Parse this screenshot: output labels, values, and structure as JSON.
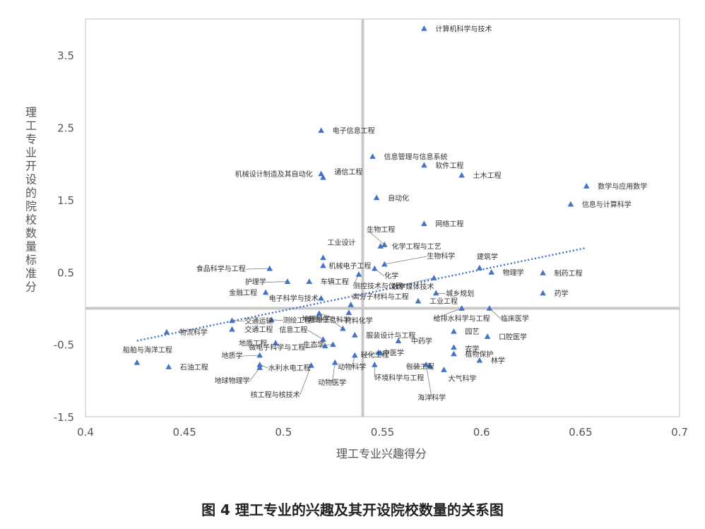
{
  "caption": "图 4 理工专业的兴趣及其开设院校数量的关系图",
  "chart_data": {
    "type": "scatter",
    "xlabel": "理工专业兴趣得分",
    "ylabel": "理工专业开设的院校数量标准分",
    "xlim": [
      0.4,
      0.7
    ],
    "ylim": [
      -1.5,
      4.0
    ],
    "x_ticks": [
      "0.4",
      "0.45",
      "0.5",
      "0.55",
      "0.6",
      "0.65",
      "0.7"
    ],
    "x_tick_values": [
      0.4,
      0.45,
      0.5,
      0.55,
      0.6,
      0.65,
      0.7
    ],
    "y_ticks": [
      "3.5",
      "2.5",
      "1.5",
      "0.5",
      "-0.5",
      "-1.5"
    ],
    "y_tick_values": [
      3.5,
      2.5,
      1.5,
      0.5,
      -0.5,
      -1.5
    ],
    "x_divider": 0.54,
    "y_divider": 0.0,
    "marker_color": "#4472C4",
    "divider_color": "#C8C8C8",
    "trendline": {
      "x": [
        0.426,
        0.652
      ],
      "y": [
        -0.45,
        0.83
      ],
      "color": "#4472C4",
      "style": "dotted"
    },
    "points": [
      {
        "label": "计算机科学与技术",
        "x": 0.571,
        "y": 3.87
      },
      {
        "label": "电子信息工程",
        "x": 0.519,
        "y": 2.46
      },
      {
        "label": "信息管理与信息系统",
        "x": 0.545,
        "y": 2.1
      },
      {
        "label": "软件工程",
        "x": 0.571,
        "y": 1.98
      },
      {
        "label": "机械设计制造及其自动化",
        "x": 0.519,
        "y": 1.86
      },
      {
        "label": "通信工程",
        "x": 0.52,
        "y": 1.81
      },
      {
        "label": "土木工程",
        "x": 0.59,
        "y": 1.84
      },
      {
        "label": "数学与应用数学",
        "x": 0.653,
        "y": 1.69
      },
      {
        "label": "自动化",
        "x": 0.547,
        "y": 1.53
      },
      {
        "label": "信息与计算科学",
        "x": 0.645,
        "y": 1.44
      },
      {
        "label": "网络工程",
        "x": 0.571,
        "y": 1.17
      },
      {
        "label": "生物工程",
        "x": 0.551,
        "y": 0.88
      },
      {
        "label": "化学工程与工艺",
        "x": 0.549,
        "y": 0.86
      },
      {
        "label": "工业设计",
        "x": 0.52,
        "y": 0.7
      },
      {
        "label": "建筑学",
        "x": 0.599,
        "y": 0.56
      },
      {
        "label": "食品科学与工程",
        "x": 0.493,
        "y": 0.55
      },
      {
        "label": "机械电子工程",
        "x": 0.52,
        "y": 0.59
      },
      {
        "label": "生物科学",
        "x": 0.551,
        "y": 0.61
      },
      {
        "label": "化学",
        "x": 0.546,
        "y": 0.55
      },
      {
        "label": "物理学",
        "x": 0.605,
        "y": 0.5
      },
      {
        "label": "制药工程",
        "x": 0.631,
        "y": 0.49
      },
      {
        "label": "数字媒体技术",
        "x": 0.576,
        "y": 0.42
      },
      {
        "label": "护理学",
        "x": 0.502,
        "y": 0.37
      },
      {
        "label": "车辆工程",
        "x": 0.513,
        "y": 0.37
      },
      {
        "label": "测控技术与仪器",
        "x": 0.538,
        "y": 0.47
      },
      {
        "label": "城乡规划",
        "x": 0.577,
        "y": 0.21
      },
      {
        "label": "药学",
        "x": 0.631,
        "y": 0.21
      },
      {
        "label": "金融工程",
        "x": 0.491,
        "y": 0.22
      },
      {
        "label": "电子科学与技术",
        "x": 0.519,
        "y": 0.14
      },
      {
        "label": "高分子材料与工程",
        "x": 0.534,
        "y": 0.05
      },
      {
        "label": "工业工程",
        "x": 0.568,
        "y": 0.1
      },
      {
        "label": "给排水科学与工程",
        "x": 0.59,
        "y": 0.0
      },
      {
        "label": "临床医学",
        "x": 0.604,
        "y": 0.0
      },
      {
        "label": "地理信息科学",
        "x": 0.533,
        "y": -0.06
      },
      {
        "label": "材料化学",
        "x": 0.518,
        "y": -0.07
      },
      {
        "label": "交通运输",
        "x": 0.474,
        "y": -0.17
      },
      {
        "label": "测绘工程",
        "x": 0.494,
        "y": -0.16
      },
      {
        "label": "物流科学",
        "x": 0.441,
        "y": -0.33
      },
      {
        "label": "交通工程",
        "x": 0.474,
        "y": -0.29
      },
      {
        "label": "地理科学",
        "x": 0.53,
        "y": -0.28
      },
      {
        "label": "信息工程",
        "x": 0.52,
        "y": -0.43
      },
      {
        "label": "园艺",
        "x": 0.586,
        "y": -0.32
      },
      {
        "label": "口腔医学",
        "x": 0.603,
        "y": -0.39
      },
      {
        "label": "服装设计与工程",
        "x": 0.536,
        "y": -0.37
      },
      {
        "label": "中药学",
        "x": 0.558,
        "y": -0.45
      },
      {
        "label": "生态学",
        "x": 0.525,
        "y": -0.5
      },
      {
        "label": "地质工程",
        "x": 0.496,
        "y": -0.48
      },
      {
        "label": "农学",
        "x": 0.586,
        "y": -0.54
      },
      {
        "label": "船舶与海洋工程",
        "x": 0.426,
        "y": -0.75
      },
      {
        "label": "微电子科学与工程",
        "x": 0.521,
        "y": -0.52
      },
      {
        "label": "中医学",
        "x": 0.548,
        "y": -0.61
      },
      {
        "label": "植物保护",
        "x": 0.586,
        "y": -0.63
      },
      {
        "label": "地质学",
        "x": 0.488,
        "y": -0.65
      },
      {
        "label": "轻化工程",
        "x": 0.549,
        "y": -0.62
      },
      {
        "label": "林学",
        "x": 0.599,
        "y": -0.72
      },
      {
        "label": "石油工程",
        "x": 0.442,
        "y": -0.81
      },
      {
        "label": "水利水电工程",
        "x": 0.488,
        "y": -0.78
      },
      {
        "label": "包装工程",
        "x": 0.574,
        "y": -0.8
      },
      {
        "label": "动物科学",
        "x": 0.536,
        "y": -0.65
      },
      {
        "label": "大气科学",
        "x": 0.581,
        "y": -0.85
      },
      {
        "label": "地球物理学",
        "x": 0.488,
        "y": -0.82
      },
      {
        "label": "环境科学与工程",
        "x": 0.546,
        "y": -0.78
      },
      {
        "label": "动物医学",
        "x": 0.526,
        "y": -0.75
      },
      {
        "label": "核工程与核技术",
        "x": 0.514,
        "y": -0.79
      },
      {
        "label": "海洋科学",
        "x": 0.572,
        "y": -0.78
      }
    ]
  }
}
